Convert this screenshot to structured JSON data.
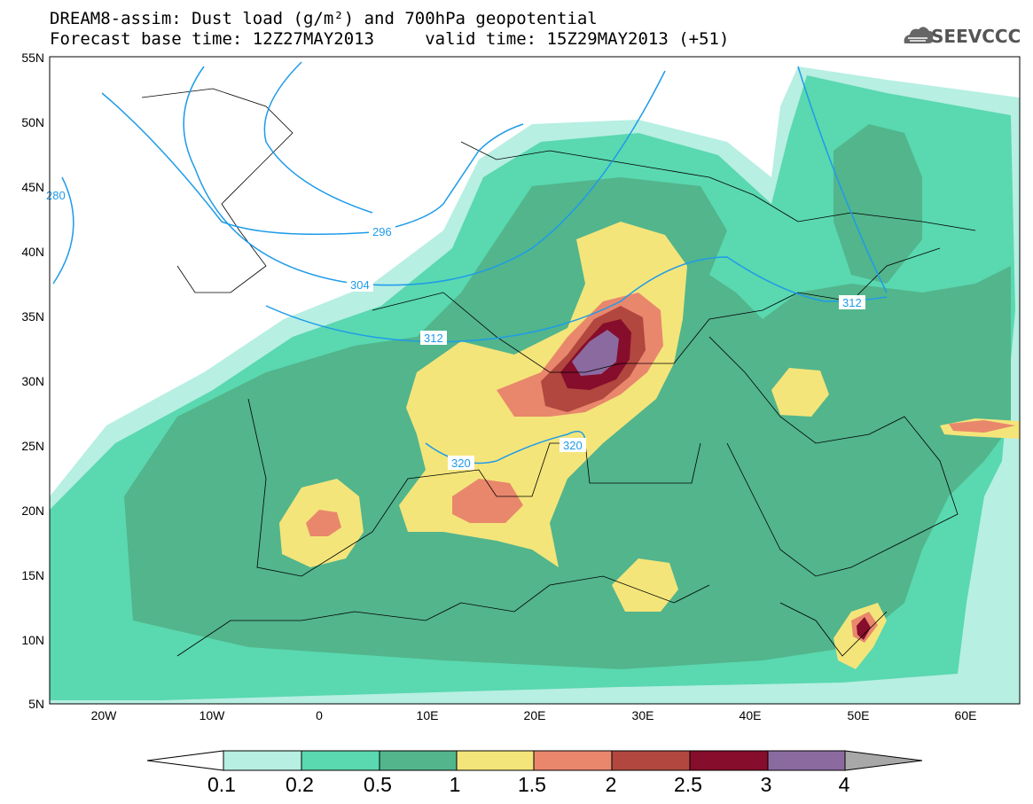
{
  "title": {
    "line1": "DREAM8-assim: Dust load (g/m²) and 700hPa geopotential",
    "line2": "Forecast base time: 12Z27MAY2013     valid time: 15Z29MAY2013 (+51)"
  },
  "logo": {
    "text": "SEEVCCC",
    "icon": "cloud-icon"
  },
  "map": {
    "lon_range": [
      -25,
      65
    ],
    "lat_range": [
      5,
      55
    ],
    "lat_labels": [
      "55N",
      "50N",
      "45N",
      "40N",
      "35N",
      "30N",
      "25N",
      "20N",
      "15N",
      "10N",
      "5N"
    ],
    "lon_labels": [
      "20W",
      "10W",
      "0",
      "10E",
      "20E",
      "30E",
      "40E",
      "50E",
      "60E"
    ],
    "contour_labels": [
      "296",
      "304",
      "312",
      "312",
      "320",
      "320",
      "280"
    ],
    "contour_color": "#1e9be9"
  },
  "colorbar": {
    "levels": [
      "0.1",
      "0.2",
      "0.5",
      "1",
      "1.5",
      "2",
      "2.5",
      "3",
      "4"
    ],
    "colors": [
      "#b7efe2",
      "#5ad8b0",
      "#52b58c",
      "#f4e57a",
      "#e9876c",
      "#b1473e",
      "#860d2b",
      "#8b6aa0",
      "#a8a8a8"
    ]
  }
}
